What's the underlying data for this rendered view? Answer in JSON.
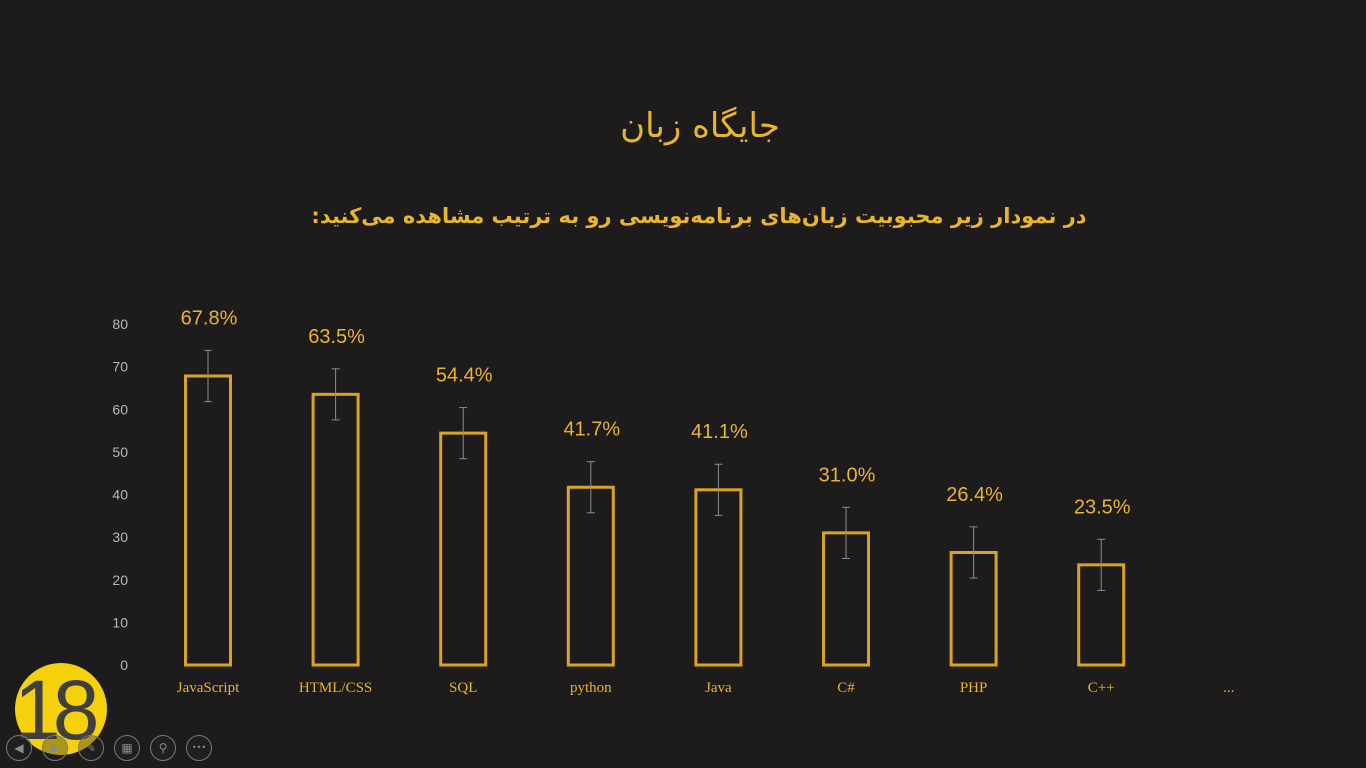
{
  "slide": {
    "title": "جایگاه زبان",
    "subtitle": "در نمودار زیر محبوبیت زبان‌های برنامه‌نویسی رو به ترتیب مشاهده می‌کنید:",
    "slide_number": "18"
  },
  "colors": {
    "background": "#1d1b1b",
    "accent": "#e8b52c",
    "bar_outline": "#d9a521",
    "axis_text": "#b8b8b8",
    "error_bar": "#8c8c8c",
    "badge": "#f5d10c"
  },
  "toolbar": {
    "buttons": [
      {
        "name": "previous-slide-button",
        "icon": "prev-icon",
        "glyph": "◀"
      },
      {
        "name": "next-slide-button",
        "icon": "next-icon",
        "glyph": "▶"
      },
      {
        "name": "pen-tool-button",
        "icon": "pen-icon",
        "glyph": "✎"
      },
      {
        "name": "see-all-slides-button",
        "icon": "grid-icon",
        "glyph": "▦"
      },
      {
        "name": "zoom-button",
        "icon": "magnifier-icon",
        "glyph": "⚲"
      },
      {
        "name": "more-options-button",
        "icon": "ellipsis-icon",
        "glyph": "•••"
      }
    ]
  },
  "chart_data": {
    "type": "bar",
    "categories": [
      "JavaScript",
      "HTML/CSS",
      "SQL",
      "python",
      "Java",
      "C#",
      "PHP",
      "C++",
      "..."
    ],
    "values": [
      67.8,
      63.5,
      54.4,
      41.7,
      41.1,
      31.0,
      26.4,
      23.5,
      null
    ],
    "data_labels": [
      "67.8%",
      "63.5%",
      "54.4%",
      "41.7%",
      "41.1%",
      "31.0%",
      "26.4%",
      "23.5%",
      ""
    ],
    "error_bar": 6,
    "y_ticks": [
      0,
      10,
      20,
      30,
      40,
      50,
      60,
      70,
      80
    ],
    "ylim": [
      0,
      80
    ],
    "grid": false,
    "legend": "none",
    "title": "",
    "xlabel": "",
    "ylabel": ""
  }
}
